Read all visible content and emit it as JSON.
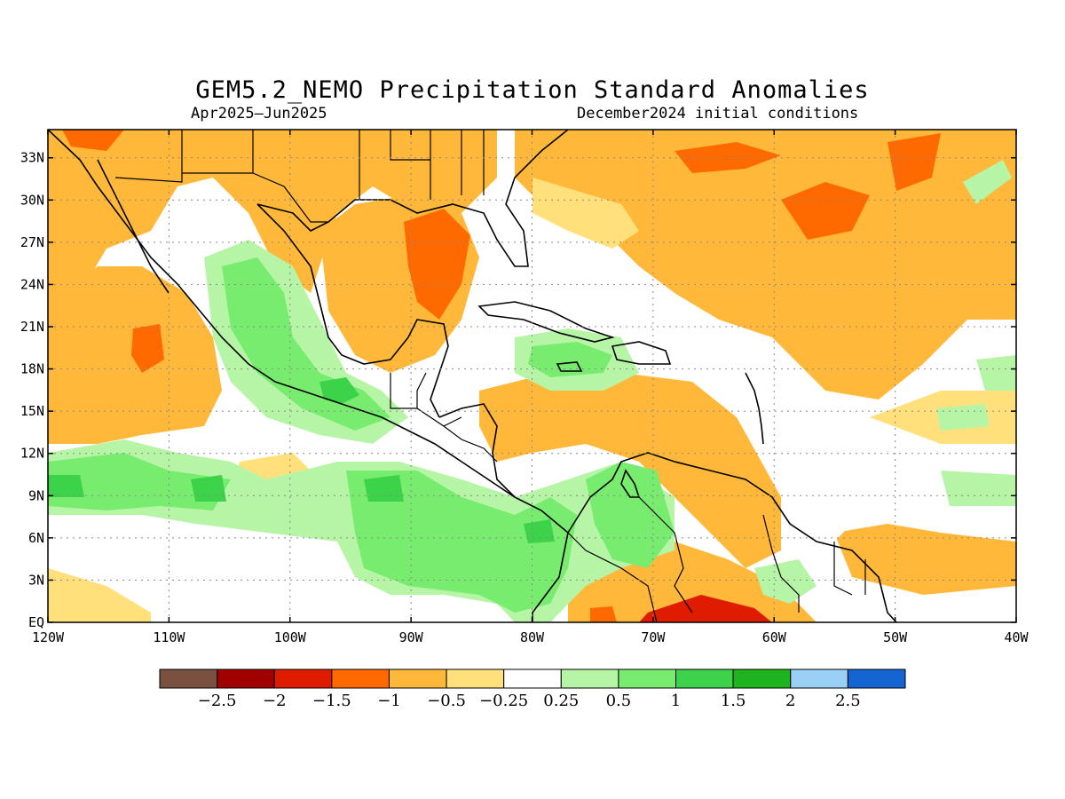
{
  "title": "GEM5.2_NEMO Precipitation Standard Anomalies",
  "period": "Apr2025–Jun2025",
  "initial_conditions": "December2024 initial conditions",
  "axes": {
    "lat_labels": [
      "33N",
      "30N",
      "27N",
      "24N",
      "21N",
      "18N",
      "15N",
      "12N",
      "9N",
      "6N",
      "3N",
      "EQ"
    ],
    "lat_values": [
      33,
      30,
      27,
      24,
      21,
      18,
      15,
      12,
      9,
      6,
      3,
      0
    ],
    "lon_labels": [
      "120W",
      "110W",
      "100W",
      "90W",
      "80W",
      "70W",
      "60W",
      "50W",
      "40W"
    ],
    "lon_values": [
      -120,
      -110,
      -100,
      -90,
      -80,
      -70,
      -60,
      -50,
      -40
    ],
    "lon_range": [
      -120,
      -40
    ],
    "lat_range": [
      0,
      35
    ],
    "grid": "dotted"
  },
  "colorbar": {
    "colors": [
      "#7a5040",
      "#a00000",
      "#e01c00",
      "#ff6a00",
      "#ffb83a",
      "#ffe07a",
      "#ffffff",
      "#b6f5a6",
      "#78ec6e",
      "#3cd24a",
      "#1eb41e",
      "#9ad0f5",
      "#1464d2"
    ],
    "tick_labels": [
      "−2.5",
      "−2",
      "−1.5",
      "−1",
      "−0.5",
      "−0.25",
      "0.25",
      "0.5",
      "1",
      "1.5",
      "2",
      "2.5"
    ]
  }
}
